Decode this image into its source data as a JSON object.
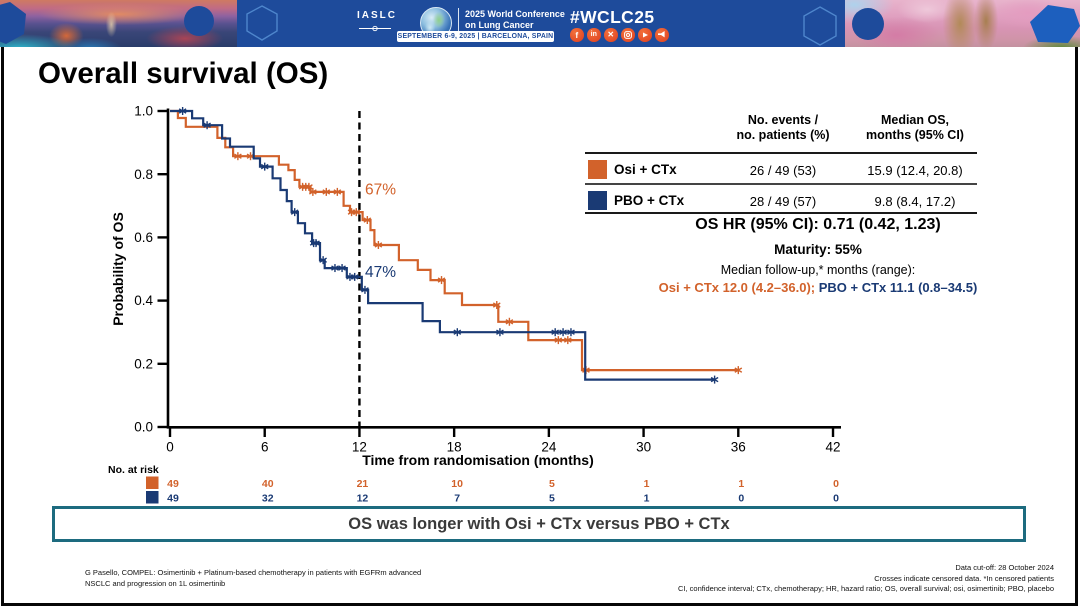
{
  "banner": {
    "org": "IASLC",
    "conference_line1": "2025 World Conference",
    "conference_line2": "on Lung Cancer",
    "date_location": "SEPTEMBER 6-9, 2025   |   BARCELONA, SPAIN",
    "hashtag": "#WCLC25",
    "colors": {
      "background": "#1E4B9B",
      "icon": "#E8512D"
    }
  },
  "title": "Overall survival (OS)",
  "stats_table": {
    "col2_header_line1": "No. events /",
    "col2_header_line2": "no. patients (%)",
    "col3_header_line1": "Median OS,",
    "col3_header_line2": "months (95% CI)",
    "rows": [
      {
        "label": "Osi + CTx",
        "color": "#D2622B",
        "events": "26 / 49 (53)",
        "median": "15.9 (12.4, 20.8)"
      },
      {
        "label": "PBO + CTx",
        "color": "#1A3A74",
        "events": "28 / 49 (57)",
        "median": "9.8 (8.4, 17.2)"
      }
    ]
  },
  "stats": {
    "hr": "OS HR (95% CI): 0.71 (0.42, 1.23)",
    "maturity": "Maturity: 55%",
    "followup_label": "Median follow-up,* months (range):",
    "followup_osi": "Osi + CTx 12.0 (4.2–36.0); ",
    "followup_pbo": "PBO + CTx 11.1 (0.8–34.5)"
  },
  "conclusion": "OS was longer with Osi + CTx versus PBO + CTx",
  "footnotes": {
    "left_line1": "G Pasello, COMPEL: Osimertinib + Platinum-based chemotherapy in patients with EGFRm advanced",
    "left_line2": "NSCLC and progression on 1L osimertinib",
    "right_line1": "Data cut-off: 28 October 2024",
    "right_line2": "Crosses indicate censored data. *In censored patients",
    "right_line3": "CI, confidence interval; CTx, chemotherapy; HR, hazard ratio; OS, overall survival; osi, osimertinib; PBO, placebo"
  },
  "chart_data": {
    "type": "line",
    "subtype": "kaplan-meier",
    "xlabel": "Time from randomisation (months)",
    "ylabel": "Probability of OS",
    "xlim": [
      0,
      42
    ],
    "xticks": [
      0,
      6,
      12,
      18,
      24,
      30,
      36,
      42
    ],
    "ylim": [
      0,
      1
    ],
    "yticks": [
      0.0,
      0.2,
      0.4,
      0.6,
      0.8,
      1.0
    ],
    "grid": false,
    "dashed_line_x": 12,
    "annotations": [
      {
        "text": "67%",
        "x": 12.35,
        "y": 0.735,
        "series": "Osi + CTx"
      },
      {
        "text": "47%",
        "x": 12.35,
        "y": 0.475,
        "series": "PBO + CTx"
      }
    ],
    "series": [
      {
        "name": "Osi + CTx",
        "color": "#D2622B",
        "steps": [
          [
            0,
            1.0
          ],
          [
            0.5,
            0.978
          ],
          [
            1.0,
            0.95
          ],
          [
            3.0,
            0.915
          ],
          [
            3.5,
            0.885
          ],
          [
            4.0,
            0.857
          ],
          [
            6.9,
            0.83
          ],
          [
            7.5,
            0.813
          ],
          [
            7.9,
            0.782
          ],
          [
            8.2,
            0.76
          ],
          [
            8.9,
            0.744
          ],
          [
            11.0,
            0.7
          ],
          [
            11.4,
            0.68
          ],
          [
            12.2,
            0.655
          ],
          [
            12.7,
            0.623
          ],
          [
            12.95,
            0.576
          ],
          [
            14.5,
            0.528
          ],
          [
            15.7,
            0.497
          ],
          [
            16.5,
            0.465
          ],
          [
            17.4,
            0.423
          ],
          [
            18.5,
            0.386
          ],
          [
            20.8,
            0.333
          ],
          [
            22.7,
            0.275
          ],
          [
            26.1,
            0.18
          ]
        ],
        "end": 36.0,
        "censors": [
          [
            4.3,
            0.857
          ],
          [
            5.1,
            0.857
          ],
          [
            8.4,
            0.76
          ],
          [
            8.6,
            0.76
          ],
          [
            8.8,
            0.76
          ],
          [
            9.05,
            0.744
          ],
          [
            9.9,
            0.744
          ],
          [
            10.6,
            0.744
          ],
          [
            11.5,
            0.68
          ],
          [
            11.8,
            0.68
          ],
          [
            12.5,
            0.655
          ],
          [
            13.2,
            0.576
          ],
          [
            17.2,
            0.465
          ],
          [
            20.7,
            0.386
          ],
          [
            21.5,
            0.333
          ],
          [
            24.6,
            0.275
          ],
          [
            25.2,
            0.275
          ],
          [
            26.35,
            0.18
          ],
          [
            36.0,
            0.18
          ]
        ]
      },
      {
        "name": "PBO + CTx",
        "color": "#1A3A74",
        "steps": [
          [
            0,
            1.0
          ],
          [
            1.4,
            0.977
          ],
          [
            2.1,
            0.955
          ],
          [
            3.3,
            0.913
          ],
          [
            3.8,
            0.887
          ],
          [
            5.3,
            0.85
          ],
          [
            5.7,
            0.824
          ],
          [
            6.5,
            0.787
          ],
          [
            7.0,
            0.75
          ],
          [
            7.4,
            0.715
          ],
          [
            7.7,
            0.68
          ],
          [
            8.1,
            0.645
          ],
          [
            8.55,
            0.613
          ],
          [
            9.0,
            0.582
          ],
          [
            9.5,
            0.528
          ],
          [
            9.8,
            0.503
          ],
          [
            11.2,
            0.475
          ],
          [
            12.15,
            0.434
          ],
          [
            12.55,
            0.392
          ],
          [
            16.0,
            0.335
          ],
          [
            17.1,
            0.3
          ],
          [
            26.3,
            0.15
          ]
        ],
        "end": 34.5,
        "censors": [
          [
            0.8,
            1.0
          ],
          [
            2.35,
            0.955
          ],
          [
            6.0,
            0.824
          ],
          [
            7.9,
            0.68
          ],
          [
            9.1,
            0.582
          ],
          [
            9.25,
            0.582
          ],
          [
            9.7,
            0.528
          ],
          [
            10.45,
            0.503
          ],
          [
            10.9,
            0.503
          ],
          [
            11.4,
            0.475
          ],
          [
            11.7,
            0.475
          ],
          [
            12.35,
            0.434
          ],
          [
            18.2,
            0.3
          ],
          [
            20.9,
            0.3
          ],
          [
            24.4,
            0.3
          ],
          [
            24.9,
            0.3
          ],
          [
            25.4,
            0.3
          ],
          [
            34.5,
            0.15
          ]
        ]
      }
    ],
    "risk_table": {
      "label": "No. at risk",
      "x": [
        0,
        6,
        12,
        18,
        24,
        30,
        36,
        42
      ],
      "rows": [
        {
          "name": "Osi + CTx",
          "color": "#D2622B",
          "values": [
            49,
            40,
            21,
            10,
            5,
            1,
            1,
            0
          ]
        },
        {
          "name": "PBO + CTx",
          "color": "#1A3A74",
          "values": [
            49,
            32,
            12,
            7,
            5,
            1,
            0,
            0
          ]
        }
      ]
    }
  }
}
